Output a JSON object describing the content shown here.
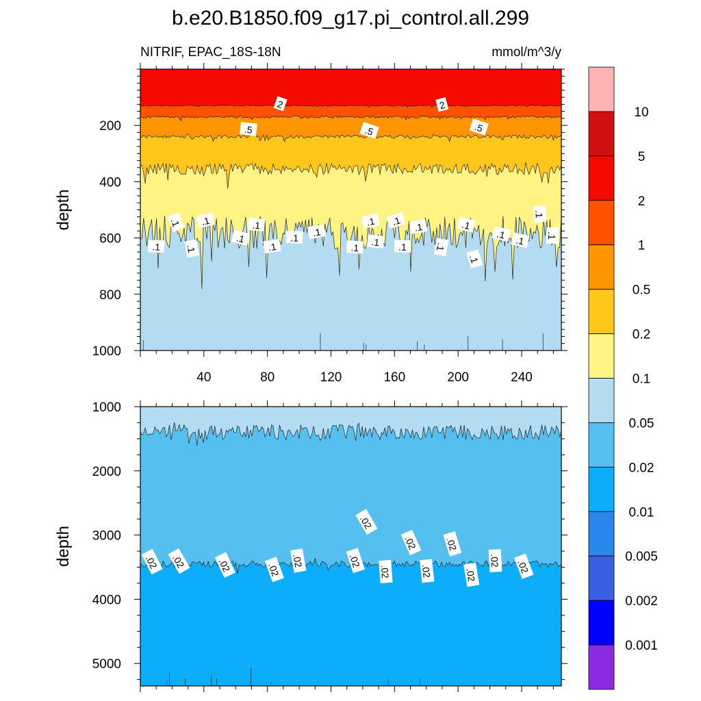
{
  "title": "b.e20.B1850.f09_g17.pi_control.all.299",
  "subtitle_left": "NITRIF, EPAC_18S-18N",
  "subtitle_right": "mmol/m^3/y",
  "chart_data": [
    {
      "type": "contour",
      "panel": "upper",
      "ylabel": "depth",
      "xlim": [
        0,
        265
      ],
      "ylim": [
        1000,
        0
      ],
      "xticks": [
        "40",
        "80",
        "120",
        "160",
        "200",
        "240"
      ],
      "xtick_values": [
        40,
        80,
        120,
        160,
        200,
        240
      ],
      "yticks": [
        "200",
        "400",
        "600",
        "800",
        "1000"
      ],
      "ytick_values": [
        200,
        400,
        600,
        800,
        1000
      ],
      "bands": [
        {
          "range": "2-5",
          "top": 0,
          "bottom": 130,
          "color": "#f50a00"
        },
        {
          "range": "1-2",
          "top": 130,
          "bottom": 170,
          "color": "#ff5200"
        },
        {
          "range": "0.5-1",
          "top": 170,
          "bottom": 240,
          "color": "#ff9500"
        },
        {
          "range": "0.2-0.5",
          "top": 240,
          "bottom": 355,
          "color": "#ffc71c"
        },
        {
          "range": "0.1-0.2",
          "top": 355,
          "bottom": 580,
          "color": "#fff383"
        },
        {
          "range": "0.05-0.1",
          "top": 580,
          "bottom": 1000,
          "color": "#b3dcf2"
        }
      ],
      "contour_labels": [
        {
          "text": "2",
          "x": 88,
          "depth": 125
        },
        {
          "text": "2",
          "x": 190,
          "depth": 128
        },
        {
          "text": ".5",
          "x": 68,
          "depth": 215
        },
        {
          "text": ".5",
          "x": 144,
          "depth": 220
        },
        {
          "text": ".5",
          "x": 213,
          "depth": 208
        },
        {
          "text": ".1",
          "x": 10,
          "depth": 632
        },
        {
          "text": ".1",
          "x": 22,
          "depth": 545
        },
        {
          "text": ".1",
          "x": 32,
          "depth": 638
        },
        {
          "text": ".1",
          "x": 41,
          "depth": 540
        },
        {
          "text": ".1",
          "x": 63,
          "depth": 602
        },
        {
          "text": ".1",
          "x": 73,
          "depth": 555
        },
        {
          "text": ".1",
          "x": 83,
          "depth": 632
        },
        {
          "text": ".1",
          "x": 97,
          "depth": 600
        },
        {
          "text": ".1",
          "x": 111,
          "depth": 580
        },
        {
          "text": ".1",
          "x": 135,
          "depth": 635
        },
        {
          "text": ".1",
          "x": 145,
          "depth": 542
        },
        {
          "text": ".1",
          "x": 148,
          "depth": 615
        },
        {
          "text": ".1",
          "x": 161,
          "depth": 540
        },
        {
          "text": ".1",
          "x": 165,
          "depth": 632
        },
        {
          "text": ".1",
          "x": 175,
          "depth": 562
        },
        {
          "text": ".1",
          "x": 189,
          "depth": 632
        },
        {
          "text": ".1",
          "x": 205,
          "depth": 555
        },
        {
          "text": ".1",
          "x": 210,
          "depth": 675
        },
        {
          "text": ".1",
          "x": 227,
          "depth": 588
        },
        {
          "text": ".1",
          "x": 239,
          "depth": 610
        },
        {
          "text": ".1",
          "x": 251,
          "depth": 515
        },
        {
          "text": ".1",
          "x": 259,
          "depth": 592
        }
      ]
    },
    {
      "type": "contour",
      "panel": "lower",
      "ylabel": "depth",
      "xlim": [
        0,
        265
      ],
      "ylim": [
        5350,
        1000
      ],
      "yticks": [
        "1000",
        "2000",
        "3000",
        "4000",
        "5000"
      ],
      "ytick_values": [
        1000,
        2000,
        3000,
        4000,
        5000
      ],
      "bands": [
        {
          "range": "0.05-0.1",
          "top": 1000,
          "bottom": 1400,
          "color": "#b3dcf2"
        },
        {
          "range": "0.02-0.05",
          "top": 1400,
          "bottom": 3450,
          "color": "#55c0f0"
        },
        {
          "range": "0.01-0.02",
          "top": 3450,
          "bottom": 5350,
          "color": "#0cadfb"
        }
      ],
      "contour_labels": [
        {
          "text": ".02",
          "x": 7,
          "depth": 3420
        },
        {
          "text": ".02",
          "x": 24,
          "depth": 3410
        },
        {
          "text": ".02",
          "x": 53,
          "depth": 3470
        },
        {
          "text": ".02",
          "x": 84,
          "depth": 3540
        },
        {
          "text": ".02",
          "x": 99,
          "depth": 3400
        },
        {
          "text": ".02",
          "x": 135,
          "depth": 3400
        },
        {
          "text": ".02",
          "x": 142,
          "depth": 2800
        },
        {
          "text": ".02",
          "x": 154,
          "depth": 3570
        },
        {
          "text": ".02",
          "x": 170,
          "depth": 3120
        },
        {
          "text": ".02",
          "x": 180,
          "depth": 3560
        },
        {
          "text": ".02",
          "x": 196,
          "depth": 3140
        },
        {
          "text": ".02",
          "x": 208,
          "depth": 3620
        },
        {
          "text": ".02",
          "x": 223,
          "depth": 3400
        },
        {
          "text": ".02",
          "x": 241,
          "depth": 3490
        }
      ]
    }
  ],
  "colorbar": {
    "labels": [
      "10",
      "5",
      "2",
      "1",
      "0.5",
      "0.2",
      "0.1",
      "0.05",
      "0.02",
      "0.01",
      "0.005",
      "0.002",
      "0.001"
    ],
    "colors": [
      "#ffb3b3",
      "#d01010",
      "#f50a00",
      "#ff5200",
      "#ff9500",
      "#ffc71c",
      "#fff383",
      "#b3dcf2",
      "#55c0f0",
      "#0cadfb",
      "#2a86ec",
      "#3a5fe0",
      "#0000ff",
      "#8a2be2"
    ]
  }
}
